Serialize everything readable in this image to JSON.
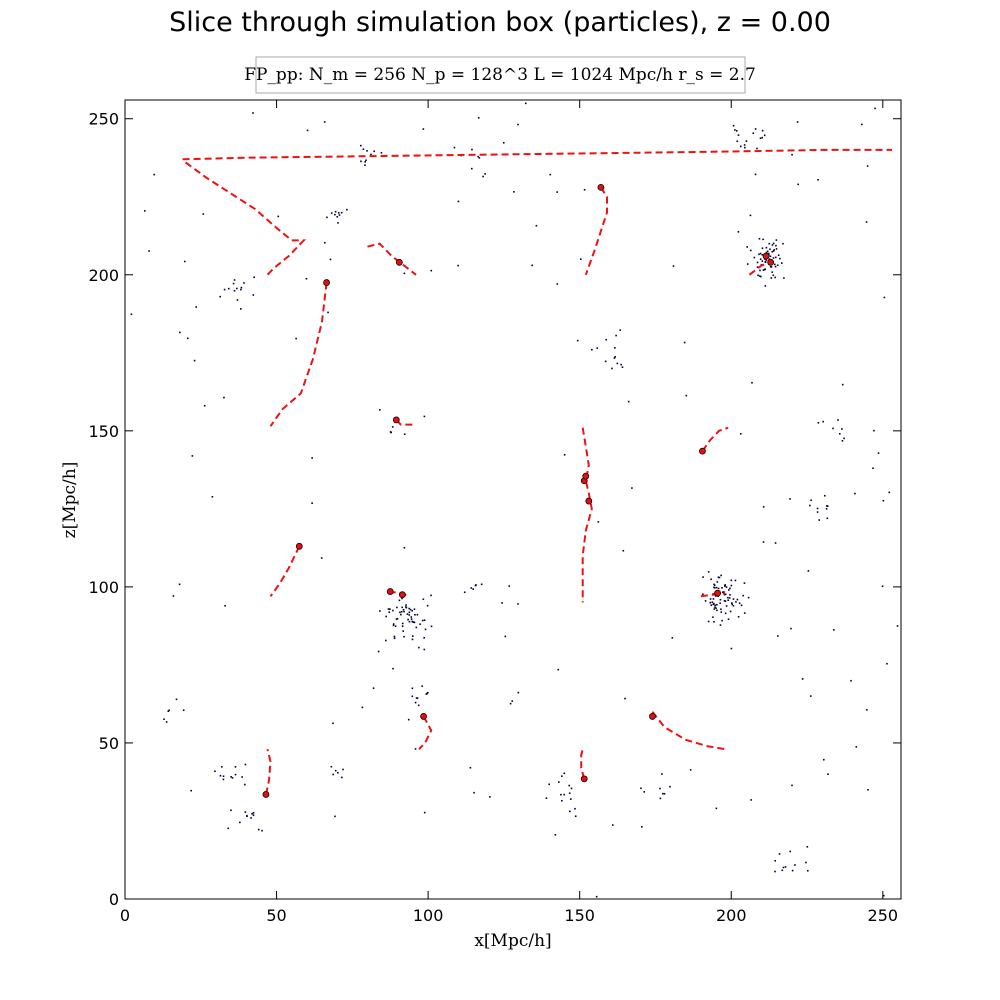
{
  "chart_data": {
    "type": "scatter",
    "title": "Slice through simulation box (particles), z = 0.00",
    "legend_text": "FP_pp:  N_m = 256   N_p = 128^3   L = 1024 Mpc/h   r_s = 2.7",
    "xlabel": "x[Mpc/h]",
    "ylabel": "z[Mpc/h]",
    "xlim": [
      0,
      256
    ],
    "ylim": [
      0,
      256
    ],
    "xticks": [
      0,
      50,
      100,
      150,
      200,
      250
    ],
    "yticks": [
      0,
      50,
      100,
      150,
      200,
      250
    ],
    "xtick_labels": [
      "0",
      "50",
      "100",
      "150",
      "200",
      "250"
    ],
    "ytick_labels": [
      "0",
      "50",
      "100",
      "150",
      "200",
      "250"
    ],
    "grid": false,
    "legend_position": "top-center",
    "colors": {
      "particles": "#000033",
      "halos": "#dd1111",
      "tracks": "#ee1111"
    },
    "particle_clusters": [
      {
        "x": 212,
        "y": 205,
        "n": 70,
        "spread": 4.5
      },
      {
        "x": 197,
        "y": 97,
        "n": 80,
        "spread": 5
      },
      {
        "x": 93,
        "y": 90,
        "n": 60,
        "spread": 6
      },
      {
        "x": 80,
        "y": 238,
        "n": 10,
        "spread": 3
      },
      {
        "x": 205,
        "y": 244,
        "n": 16,
        "spread": 5
      },
      {
        "x": 70,
        "y": 219,
        "n": 10,
        "spread": 2
      },
      {
        "x": 38,
        "y": 196,
        "n": 14,
        "spread": 5
      },
      {
        "x": 42,
        "y": 25,
        "n": 10,
        "spread": 3
      },
      {
        "x": 35,
        "y": 40,
        "n": 12,
        "spread": 4
      },
      {
        "x": 145,
        "y": 35,
        "n": 14,
        "spread": 5
      },
      {
        "x": 175,
        "y": 35,
        "n": 8,
        "spread": 4
      },
      {
        "x": 160,
        "y": 175,
        "n": 12,
        "spread": 5
      },
      {
        "x": 235,
        "y": 150,
        "n": 8,
        "spread": 4
      },
      {
        "x": 230,
        "y": 125,
        "n": 10,
        "spread": 3
      },
      {
        "x": 97,
        "y": 65,
        "n": 10,
        "spread": 3
      },
      {
        "x": 220,
        "y": 10,
        "n": 10,
        "spread": 5
      },
      {
        "x": 115,
        "y": 238,
        "n": 8,
        "spread": 4
      },
      {
        "x": 88,
        "y": 150,
        "n": 6,
        "spread": 4
      },
      {
        "x": 115,
        "y": 100,
        "n": 6,
        "spread": 3
      },
      {
        "x": 15,
        "y": 60,
        "n": 6,
        "spread": 4
      },
      {
        "x": 70,
        "y": 40,
        "n": 6,
        "spread": 2
      }
    ],
    "particle_scatter_count": 140,
    "halos": [
      {
        "x": 90.5,
        "y": 204
      },
      {
        "x": 66.5,
        "y": 197.5
      },
      {
        "x": 157,
        "y": 228
      },
      {
        "x": 213,
        "y": 204
      },
      {
        "x": 211.5,
        "y": 206
      },
      {
        "x": 89.5,
        "y": 153.5
      },
      {
        "x": 190.5,
        "y": 143.5
      },
      {
        "x": 151.5,
        "y": 134
      },
      {
        "x": 152,
        "y": 135.5
      },
      {
        "x": 153,
        "y": 127.5
      },
      {
        "x": 57.5,
        "y": 113
      },
      {
        "x": 87.5,
        "y": 98.5
      },
      {
        "x": 91.5,
        "y": 97.5
      },
      {
        "x": 195.5,
        "y": 98
      },
      {
        "x": 98.5,
        "y": 58.5
      },
      {
        "x": 174,
        "y": 58.5
      },
      {
        "x": 46.5,
        "y": 33.5
      },
      {
        "x": 151.5,
        "y": 38.5
      }
    ],
    "tracks": [
      [
        [
          19,
          237
        ],
        [
          40,
          237.5
        ],
        [
          80,
          238
        ],
        [
          120,
          238.5
        ],
        [
          160,
          239
        ],
        [
          200,
          239.5
        ],
        [
          230,
          240
        ],
        [
          253,
          240
        ]
      ],
      [
        [
          20,
          236
        ],
        [
          27,
          231
        ],
        [
          35,
          226
        ],
        [
          43,
          221
        ],
        [
          50,
          215
        ],
        [
          55,
          211
        ],
        [
          59,
          211
        ],
        [
          54,
          206
        ],
        [
          49,
          202
        ],
        [
          47,
          200
        ]
      ],
      [
        [
          66.5,
          197.5
        ],
        [
          65,
          185
        ],
        [
          62,
          173
        ],
        [
          58,
          162
        ],
        [
          52,
          157
        ],
        [
          48,
          151.5
        ]
      ],
      [
        [
          80,
          209
        ],
        [
          84,
          210
        ],
        [
          88,
          206
        ],
        [
          92,
          203
        ],
        [
          96,
          200
        ]
      ],
      [
        [
          157,
          228
        ],
        [
          159,
          225
        ],
        [
          159,
          220
        ],
        [
          157,
          214
        ],
        [
          155,
          208
        ],
        [
          152,
          200
        ]
      ],
      [
        [
          206,
          200
        ],
        [
          210,
          203
        ],
        [
          213,
          204
        ]
      ],
      [
        [
          89.5,
          153.5
        ],
        [
          91,
          152
        ],
        [
          93,
          152
        ],
        [
          95,
          152
        ]
      ],
      [
        [
          190.5,
          143.5
        ],
        [
          193,
          147
        ],
        [
          196,
          150
        ],
        [
          199,
          151
        ]
      ],
      [
        [
          151,
          151
        ],
        [
          152,
          145
        ],
        [
          153,
          139
        ],
        [
          152,
          134
        ],
        [
          153,
          130
        ],
        [
          154,
          125
        ],
        [
          152,
          118
        ],
        [
          151,
          110
        ],
        [
          151,
          100
        ],
        [
          151,
          95
        ]
      ],
      [
        [
          57.5,
          113
        ],
        [
          54,
          106
        ],
        [
          51,
          101
        ],
        [
          48,
          97
        ]
      ],
      [
        [
          87,
          98.5
        ],
        [
          91,
          98
        ],
        [
          94,
          97
        ]
      ],
      [
        [
          190,
          97
        ],
        [
          194,
          97.5
        ],
        [
          198,
          98
        ]
      ],
      [
        [
          98.5,
          58.5
        ],
        [
          101,
          54
        ],
        [
          99,
          50
        ],
        [
          97,
          48
        ]
      ],
      [
        [
          174,
          60
        ],
        [
          178,
          55
        ],
        [
          185,
          51
        ],
        [
          192,
          49
        ],
        [
          198,
          48
        ]
      ],
      [
        [
          46.5,
          33.5
        ],
        [
          47.5,
          38
        ],
        [
          48,
          44
        ],
        [
          47,
          48
        ]
      ],
      [
        [
          151.5,
          38.5
        ],
        [
          150.5,
          42
        ],
        [
          150.5,
          46
        ],
        [
          151,
          48
        ]
      ]
    ]
  }
}
